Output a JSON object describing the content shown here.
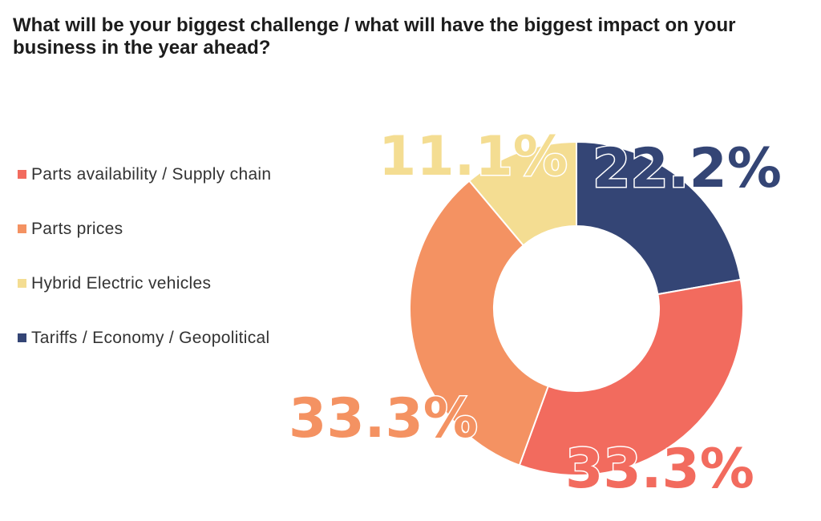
{
  "chart_data": {
    "type": "pie",
    "title": "What will be your biggest challenge / what will have the biggest impact on your business in the year ahead?",
    "categories": [
      "Parts availability / Supply chain",
      "Parts prices",
      "Hybrid Electric vehicles",
      "Tariffs / Economy / Geopolitical"
    ],
    "values": [
      33.3,
      33.3,
      11.1,
      22.2
    ],
    "data_labels": [
      "33.3%",
      "33.3%",
      "11.1%",
      "22.2%"
    ],
    "colors": [
      "#f26b5e",
      "#f49262",
      "#f4dd92",
      "#344575"
    ],
    "donut": true,
    "legend_position": "left"
  }
}
